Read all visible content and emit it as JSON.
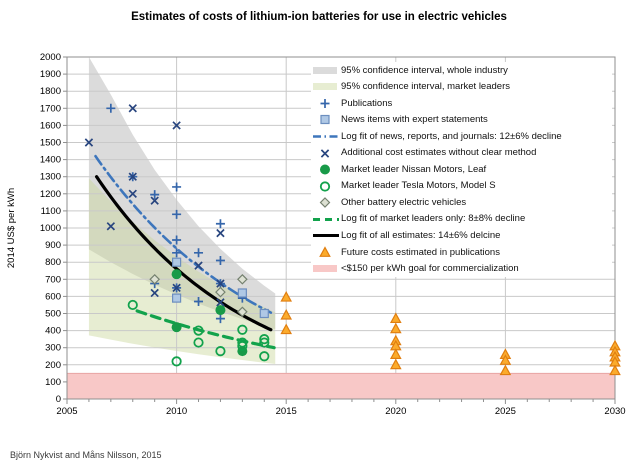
{
  "title": "Estimates of costs of lithium-ion batteries for use in electric vehicles",
  "attribution": "Björn Nykvist and Måns Nilsson, 2015",
  "y_axis": {
    "label": "2014 US$ per kWh",
    "min": 0,
    "max": 2000,
    "tick_step": 100
  },
  "x_axis": {
    "min": 2005,
    "max": 2030,
    "tick_step": 5,
    "minor_step": 1
  },
  "colors": {
    "plus": "#3566AB",
    "cross": "#28457F",
    "square_fill": "#AFC8E5",
    "square_stroke": "#6C8EBF",
    "dashdot_line": "#3E76BC",
    "green": "#12A24C",
    "nissan_fill": "#189A48",
    "diamond_fill": "#DDE1D3",
    "diamond_stroke": "#75816F",
    "triangle_fill": "#FBAB2C",
    "triangle_stroke": "#E07E10",
    "pink_band": "#F8C8C7",
    "pink_edge": "#E9A5A3",
    "gray_band": "#DBDBDB",
    "green_band": "#C9D89B",
    "black_line": "#000000",
    "grid": "#C9C9C9",
    "frame": "#8F8F8F",
    "text": "#000000"
  },
  "legend": {
    "items": [
      {
        "id": "ci-whole-industry",
        "marker": "band-gray",
        "label": "95% confidence interval, whole industry"
      },
      {
        "id": "ci-market-leaders",
        "marker": "band-green",
        "label": "95% confidence interval, market leaders"
      },
      {
        "id": "publications",
        "marker": "plus",
        "label": "Publications"
      },
      {
        "id": "news-items",
        "marker": "square",
        "label": "News items with expert statements"
      },
      {
        "id": "news-fit",
        "marker": "line-dashdot",
        "label": "Log fit of news, reports, and journals: 12±6% decline"
      },
      {
        "id": "additional",
        "marker": "cross",
        "label": "Additional cost estimates without clear method"
      },
      {
        "id": "nissan-leaf",
        "marker": "circle-filled",
        "label": "Market leader Nissan Motors, Leaf"
      },
      {
        "id": "tesla-model-s",
        "marker": "circle-open",
        "label": "Market leader Tesla Motors, Model S"
      },
      {
        "id": "other-bev",
        "marker": "diamond",
        "label": "Other battery electric vehicles"
      },
      {
        "id": "leaders-fit",
        "marker": "line-dashed",
        "label": "Log fit of market leaders only: 8±8% decline"
      },
      {
        "id": "all-fit",
        "marker": "line-solid",
        "label": "Log fit of all estimates: 14±6% delcine"
      },
      {
        "id": "future-costs",
        "marker": "triangle",
        "label": "Future costs estimated in publications"
      },
      {
        "id": "goal-band",
        "marker": "band-pink",
        "label": "<$150 per kWh goal for commercialization"
      }
    ]
  },
  "chart_data": {
    "type": "scatter",
    "title": "Estimates of costs of lithium-ion batteries for use in electric vehicles",
    "xlabel": "",
    "ylabel": "2014 US$ per kWh",
    "xlim": [
      2005,
      2030
    ],
    "ylim": [
      0,
      2000
    ],
    "grid": true,
    "legend_position": "top-right-inside",
    "goal_band": {
      "label": "<$150 per kWh goal for commercialization",
      "ymin": 0,
      "ymax": 150
    },
    "bands": {
      "whole_industry": {
        "upper": [
          [
            2006,
            2050
          ],
          [
            2007,
            1780
          ],
          [
            2008,
            1545
          ],
          [
            2009,
            1340
          ],
          [
            2010,
            1165
          ],
          [
            2011,
            1010
          ],
          [
            2012,
            878
          ],
          [
            2013,
            762
          ],
          [
            2014,
            662
          ],
          [
            2014.5,
            617
          ]
        ],
        "lower": [
          [
            2006,
            875
          ],
          [
            2007,
            800
          ],
          [
            2008,
            731
          ],
          [
            2009,
            668
          ],
          [
            2010,
            611
          ],
          [
            2011,
            558
          ],
          [
            2012,
            510
          ],
          [
            2013,
            467
          ],
          [
            2014,
            427
          ],
          [
            2014.5,
            408
          ]
        ]
      },
      "market_leaders": {
        "upper": [
          [
            2006,
            1290
          ],
          [
            2007,
            1156
          ],
          [
            2008,
            1036
          ],
          [
            2009,
            928
          ],
          [
            2010,
            832
          ],
          [
            2011,
            745
          ],
          [
            2012,
            668
          ],
          [
            2013,
            598
          ],
          [
            2014,
            536
          ],
          [
            2014.5,
            507
          ]
        ],
        "lower": [
          [
            2006,
            372
          ],
          [
            2007,
            347
          ],
          [
            2008,
            323
          ],
          [
            2009,
            301
          ],
          [
            2010,
            281
          ],
          [
            2011,
            262
          ],
          [
            2012,
            244
          ],
          [
            2013,
            228
          ],
          [
            2014,
            212
          ],
          [
            2014.5,
            205
          ]
        ]
      }
    },
    "series": {
      "publications": {
        "marker": "plus",
        "points": [
          [
            2007,
            1700
          ],
          [
            2008,
            1300
          ],
          [
            2009,
            1195
          ],
          [
            2009,
            675
          ],
          [
            2010,
            1240
          ],
          [
            2010,
            1080
          ],
          [
            2010,
            930
          ],
          [
            2010,
            855
          ],
          [
            2010,
            650
          ],
          [
            2011,
            855
          ],
          [
            2011,
            570
          ],
          [
            2012,
            1025
          ],
          [
            2012,
            810
          ],
          [
            2012,
            675
          ],
          [
            2012,
            470
          ],
          [
            2013,
            590
          ]
        ]
      },
      "news_items": {
        "marker": "square",
        "points": [
          [
            2010,
            800
          ],
          [
            2010,
            590
          ],
          [
            2013,
            620
          ],
          [
            2014,
            500
          ]
        ]
      },
      "additional_estimates": {
        "marker": "cross",
        "points": [
          [
            2006,
            1500
          ],
          [
            2007,
            1010
          ],
          [
            2008,
            1700
          ],
          [
            2008,
            1300
          ],
          [
            2008,
            1200
          ],
          [
            2009,
            1160
          ],
          [
            2009,
            620
          ],
          [
            2010,
            1600
          ],
          [
            2010,
            650
          ],
          [
            2011,
            780
          ],
          [
            2012,
            970
          ],
          [
            2012,
            675
          ],
          [
            2012,
            565
          ]
        ]
      },
      "nissan_leaf": {
        "marker": "circle-filled",
        "points": [
          [
            2010,
            730
          ],
          [
            2010,
            420
          ],
          [
            2012,
            520
          ],
          [
            2013,
            280
          ]
        ]
      },
      "tesla_model_s": {
        "marker": "circle-open",
        "points": [
          [
            2008,
            550
          ],
          [
            2010,
            220
          ],
          [
            2011,
            400
          ],
          [
            2011,
            330
          ],
          [
            2012,
            280
          ],
          [
            2013,
            405
          ],
          [
            2013,
            330
          ],
          [
            2013,
            310
          ],
          [
            2014,
            350
          ],
          [
            2014,
            330
          ],
          [
            2014,
            250
          ]
        ]
      },
      "other_bev": {
        "marker": "diamond",
        "points": [
          [
            2009,
            700
          ],
          [
            2012,
            625
          ],
          [
            2013,
            700
          ],
          [
            2013,
            510
          ]
        ]
      },
      "future_publications": {
        "marker": "triangle",
        "points": [
          [
            2015,
            595
          ],
          [
            2015,
            490
          ],
          [
            2015,
            405
          ],
          [
            2020,
            470
          ],
          [
            2020,
            410
          ],
          [
            2020,
            340
          ],
          [
            2020,
            310
          ],
          [
            2020,
            260
          ],
          [
            2020,
            200
          ],
          [
            2025,
            260
          ],
          [
            2025,
            225
          ],
          [
            2025,
            165
          ],
          [
            2030,
            310
          ],
          [
            2030,
            275
          ],
          [
            2030,
            245
          ],
          [
            2030,
            215
          ],
          [
            2030,
            165
          ]
        ]
      }
    },
    "fits": {
      "news_fit": {
        "style": "line-dashdot",
        "x0": 2006.3,
        "v0": 1420,
        "x1": 2014.3,
        "v1": 505,
        "decline": "12±6%"
      },
      "leaders_fit": {
        "style": "line-dashed",
        "x0": 2008.2,
        "v0": 515,
        "x1": 2014.45,
        "v1": 300,
        "decline": "8±8%"
      },
      "all_fit": {
        "style": "line-solid",
        "x0": 2006.35,
        "v0": 1300,
        "x1": 2014.3,
        "v1": 405,
        "decline": "14±6%"
      }
    }
  }
}
